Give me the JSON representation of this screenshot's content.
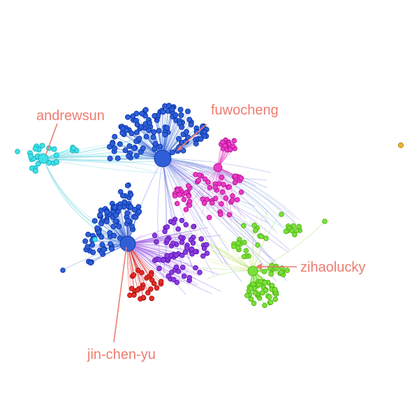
{
  "annotations": {
    "andrewsun": "andrewsun",
    "fuwocheng": "fuwocheng",
    "zihaolucky": "zihaolucky",
    "jin_chen_yu": "jin-chen-yu"
  },
  "colors": {
    "annotation": "#ef7b6f",
    "blue_community": "#2f5fd6",
    "cyan_community": "#3fe0e8",
    "magenta_community": "#e83cc4",
    "purple_community": "#8a3de0",
    "red_community": "#e0302a",
    "green_community": "#7be03a",
    "isolated_node": "#e8b23a"
  }
}
